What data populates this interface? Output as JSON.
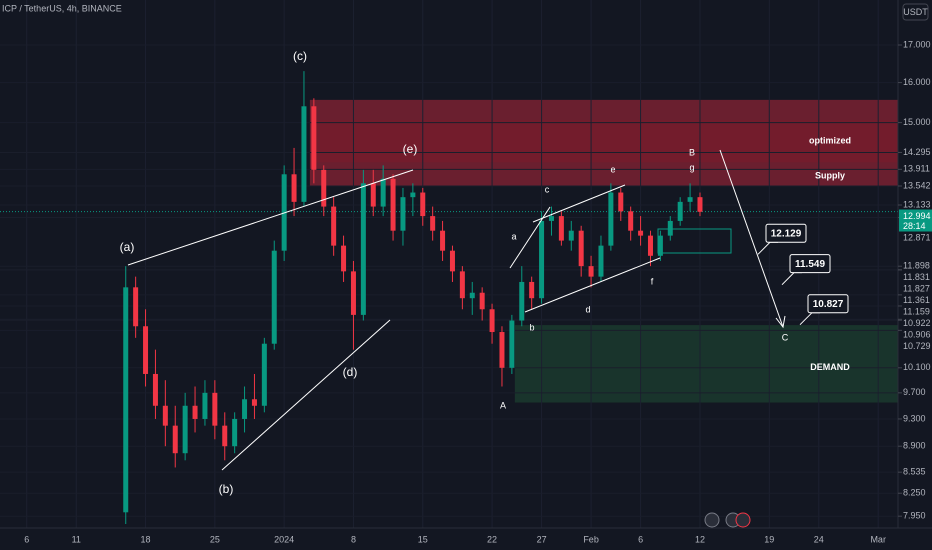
{
  "chart_data": {
    "type": "candlestick",
    "title": "ICP / TetherUS, 4h, BINANCE",
    "currency": "USDT",
    "log_scale": true,
    "up_color": "#089981",
    "down_color": "#f23645",
    "ylim": [
      7.8,
      18.28
    ],
    "yticks": [
      {
        "value": 17,
        "label": "17.000"
      },
      {
        "value": 16,
        "label": "16.000"
      },
      {
        "value": 15,
        "label": "15.000"
      },
      14.295,
      13.911,
      13.542,
      13.133,
      12.871,
      11.898,
      11.831,
      11.827,
      11.361,
      11.159,
      10.922,
      10.906,
      10.729,
      {
        "value": 10.1,
        "label": "10.100"
      },
      {
        "value": 9.7,
        "label": "9.700"
      },
      {
        "value": 9.3,
        "label": "9.300"
      },
      {
        "value": 8.9,
        "label": "8.900"
      },
      8.535,
      {
        "value": 8.25,
        "label": "8.250"
      },
      {
        "value": 7.95,
        "label": "7.950"
      }
    ],
    "xlim": [
      -28.7,
      62
    ],
    "xticks": [
      {
        "value": -26,
        "label": "6"
      },
      {
        "value": -21,
        "label": "11"
      },
      {
        "value": -14,
        "label": "18"
      },
      {
        "value": -7,
        "label": "25"
      },
      {
        "value": 0,
        "label": "2024"
      },
      {
        "value": 7,
        "label": "8"
      },
      {
        "value": 14,
        "label": "15"
      },
      {
        "value": 21,
        "label": "22"
      },
      {
        "value": 26,
        "label": "27"
      },
      {
        "value": 31,
        "label": "Feb"
      },
      {
        "value": 36,
        "label": "6"
      },
      {
        "value": 42,
        "label": "12"
      },
      {
        "value": 49,
        "label": "19"
      },
      {
        "value": 54,
        "label": "24"
      },
      {
        "value": 60,
        "label": "Mar"
      }
    ],
    "x": [
      -16,
      -15,
      -14,
      -13,
      -12,
      -11,
      -10,
      -9,
      -8,
      -7,
      -6,
      -5,
      -4,
      -3,
      -2,
      -1,
      0,
      1,
      2,
      3,
      4,
      5,
      6,
      7,
      8,
      9,
      10,
      11,
      12,
      13,
      14,
      15,
      16,
      17,
      18,
      19,
      20,
      21,
      22,
      23,
      24,
      25,
      26,
      27,
      28,
      29,
      30,
      31,
      32,
      33,
      34,
      35,
      36,
      37,
      38,
      39,
      40,
      41,
      42
    ],
    "open": [
      8.0,
      11.5,
      10.8,
      10.0,
      9.5,
      9.2,
      8.8,
      9.5,
      9.3,
      9.7,
      9.2,
      8.9,
      9.3,
      9.6,
      9.5,
      10.5,
      12.2,
      13.8,
      13.2,
      15.4,
      13.9,
      13.1,
      12.3,
      11.8,
      11.0,
      13.6,
      13.1,
      13.7,
      12.6,
      13.3,
      13.4,
      12.9,
      12.6,
      12.2,
      11.8,
      11.3,
      11.4,
      11.1,
      10.7,
      10.1,
      10.9,
      11.6,
      11.3,
      12.8,
      12.9,
      12.4,
      12.6,
      11.9,
      11.7,
      12.3,
      13.4,
      13.0,
      12.6,
      12.5,
      12.1,
      12.5,
      12.8,
      13.2,
      13.3
    ],
    "high": [
      11.9,
      11.7,
      11.1,
      10.4,
      9.9,
      9.5,
      9.7,
      9.8,
      9.9,
      9.9,
      9.4,
      9.4,
      9.8,
      10.0,
      10.6,
      12.4,
      14.0,
      14.4,
      16.3,
      15.6,
      14.0,
      13.3,
      12.5,
      12.0,
      13.9,
      13.9,
      14.0,
      13.8,
      13.5,
      13.6,
      13.5,
      13.1,
      12.8,
      12.3,
      11.9,
      11.6,
      11.5,
      11.2,
      10.8,
      11.0,
      11.9,
      11.7,
      13.0,
      13.1,
      13.0,
      12.8,
      12.7,
      12.1,
      12.5,
      13.6,
      13.5,
      13.1,
      12.9,
      12.6,
      12.6,
      12.9,
      13.3,
      13.6,
      13.4
    ],
    "low": [
      7.85,
      10.6,
      9.8,
      9.3,
      8.9,
      8.6,
      8.7,
      9.1,
      9.2,
      9.0,
      8.7,
      8.8,
      9.1,
      9.3,
      9.4,
      10.4,
      12.0,
      12.9,
      13.1,
      13.6,
      12.9,
      12.1,
      11.6,
      10.4,
      10.9,
      12.9,
      12.9,
      12.4,
      12.3,
      12.9,
      12.7,
      12.4,
      12.0,
      11.6,
      11.1,
      11.0,
      10.9,
      10.5,
      9.8,
      10.0,
      10.8,
      11.1,
      11.2,
      12.5,
      12.3,
      12.2,
      11.7,
      11.5,
      11.6,
      12.2,
      12.8,
      12.4,
      12.3,
      11.9,
      12.0,
      12.4,
      12.7,
      13.0,
      12.9
    ],
    "close": [
      11.5,
      10.8,
      10.0,
      9.5,
      9.2,
      8.8,
      9.5,
      9.3,
      9.7,
      9.2,
      8.9,
      9.3,
      9.6,
      9.5,
      10.5,
      12.2,
      13.8,
      13.2,
      15.4,
      13.9,
      13.1,
      12.3,
      11.8,
      11.0,
      13.6,
      13.1,
      13.7,
      12.6,
      13.3,
      13.4,
      12.9,
      12.6,
      12.2,
      11.8,
      11.3,
      11.4,
      11.1,
      10.7,
      10.1,
      10.9,
      11.6,
      11.3,
      12.8,
      12.9,
      12.4,
      12.6,
      11.9,
      11.7,
      12.3,
      13.4,
      13.0,
      12.6,
      12.5,
      12.1,
      12.5,
      12.8,
      13.2,
      13.3,
      12.99
    ],
    "last_price": 12.994,
    "last_price_label": "12.994",
    "countdown": "28:14",
    "zones": [
      {
        "label": "Supply",
        "x0": 2.6,
        "low": 13.54,
        "high": 15.56,
        "color": "#b2263a"
      },
      {
        "label": "optimized",
        "x0": 3.2,
        "low": 14.07,
        "high": 15.06,
        "color": "#7a1a2a"
      },
      {
        "label": "DEMAND",
        "x0": 23.3,
        "low": 9.55,
        "high": 10.82,
        "color": "#1f4d35"
      }
    ],
    "wave_labels": [
      "(a)",
      "(b)",
      "(c)",
      "(d)",
      "(e)",
      "A",
      "a",
      "b",
      "c",
      "d",
      "e",
      "f",
      "B",
      "g",
      "C"
    ],
    "targets": [
      12.129,
      11.549,
      10.827
    ]
  }
}
